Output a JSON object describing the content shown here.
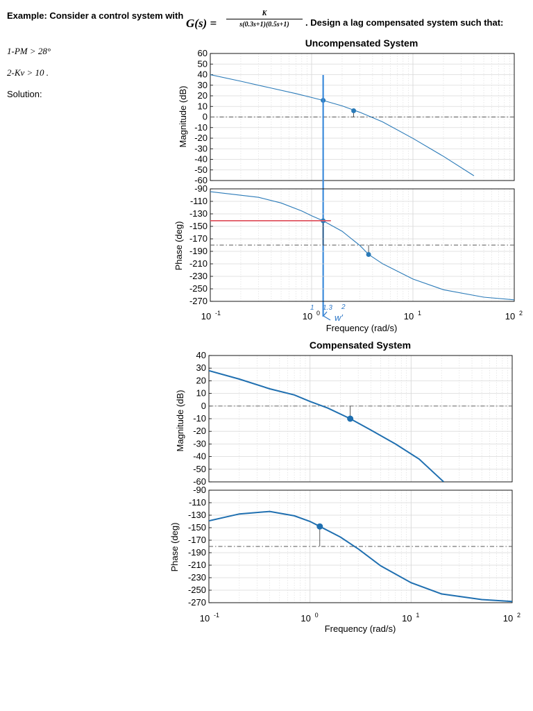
{
  "header": {
    "intro": "Example: Consider a control system with",
    "gs": "G(s) =",
    "numerator": "K",
    "denominator": "s(0.3s+1)(0.5s+1)",
    "tail": ". Design a lag compensated system such that:",
    "req1": "1-PM > 28°",
    "req2": "2-Kv > 10 .",
    "solution": "Solution:"
  },
  "annotations": {
    "hand_a": "1",
    "hand_b": "1.3",
    "hand_c": "2",
    "hand_w": "w'"
  },
  "colors": {
    "curve": "#2a7ab8",
    "curve_bold": "#1f6fb0",
    "marker_line": "#3d8bdc",
    "phase_line": "#e05560",
    "grid": "#d9d9d9",
    "refline": "#555555"
  },
  "chart_data": [
    {
      "type": "line",
      "title": "Uncompensated System",
      "subplot": "magnitude",
      "xscale": "log",
      "xlim": [
        0.1,
        100
      ],
      "ylim": [
        -60,
        60
      ],
      "yticks": [
        "60",
        "50",
        "40",
        "30",
        "20",
        "10",
        "0",
        "-10",
        "-20",
        "-30",
        "-40",
        "-50",
        "-60"
      ],
      "xlabel": "",
      "ylabel": "Magnitude (dB)",
      "series": [
        {
          "name": "G(jw) magnitude",
          "x": [
            0.1,
            0.2,
            0.4,
            0.7,
            1.0,
            1.3,
            2.0,
            3.0,
            5.0,
            10,
            20,
            40
          ],
          "values": [
            40,
            33.8,
            27.3,
            22.1,
            18.4,
            15.7,
            10.5,
            4.4,
            -4.5,
            -20.2,
            -37.2,
            -55.5
          ]
        }
      ],
      "markers": [
        {
          "x": 1.3,
          "y": 15.7
        },
        {
          "x": 2.6,
          "y": 5.9
        }
      ],
      "reference_y": 0,
      "vertical_line_x": 1.3
    },
    {
      "type": "line",
      "title": "",
      "subplot": "phase",
      "xscale": "log",
      "xlim": [
        0.1,
        100
      ],
      "ylim": [
        -270,
        -90
      ],
      "yticks": [
        "-90",
        "-110",
        "-130",
        "-150",
        "-170",
        "-190",
        "-210",
        "-230",
        "-250",
        "-270"
      ],
      "xticks": [
        "10-1",
        "100",
        "101",
        "102"
      ],
      "xlabel": "Frequency  (rad/s)",
      "ylabel": "Phase (deg)",
      "series": [
        {
          "name": "G(jw) phase",
          "x": [
            0.1,
            0.3,
            0.5,
            0.8,
            1.0,
            1.3,
            2.0,
            3.0,
            3.65,
            5.0,
            10,
            20,
            50,
            100
          ],
          "values": [
            -94.6,
            -103.6,
            -112.6,
            -125.4,
            -133.1,
            -141.1,
            -157.9,
            -180.8,
            -195,
            -209.7,
            -234.3,
            -251.4,
            -263.3,
            -267.5
          ]
        }
      ],
      "markers": [
        {
          "x": 1.3,
          "y": -141.1
        },
        {
          "x": 3.65,
          "y": -195
        }
      ],
      "reference_y": -180,
      "horizontal_line": {
        "y": -141,
        "x_from": 0.1,
        "x_to": 1.55
      }
    },
    {
      "type": "line",
      "title": "Compensated System",
      "subplot": "magnitude",
      "xscale": "log",
      "xlim": [
        0.1,
        100
      ],
      "ylim": [
        -60,
        40
      ],
      "yticks": [
        "40",
        "30",
        "20",
        "10",
        "0",
        "-10",
        "-20",
        "-30",
        "-40",
        "-50",
        "-60"
      ],
      "xlabel": "",
      "ylabel": "Magnitude (dB)",
      "series": [
        {
          "name": "Gc(jw)G(jw) magnitude",
          "x": [
            0.1,
            0.2,
            0.4,
            0.7,
            1.0,
            1.5,
            2.5,
            4.0,
            7.0,
            12,
            21
          ],
          "values": [
            28,
            21.3,
            13.6,
            8.8,
            3.6,
            -1.6,
            -10.0,
            -19.0,
            -30.0,
            -42.0,
            -60
          ]
        }
      ],
      "markers": [
        {
          "x": 2.5,
          "y": -10
        }
      ],
      "reference_y": 0
    },
    {
      "type": "line",
      "title": "",
      "subplot": "phase",
      "xscale": "log",
      "xlim": [
        0.1,
        100
      ],
      "ylim": [
        -270,
        -90
      ],
      "yticks": [
        "-90",
        "-110",
        "-130",
        "-150",
        "-170",
        "-190",
        "-210",
        "-230",
        "-250",
        "-270"
      ],
      "xticks": [
        "10-1",
        "100",
        "101",
        "102"
      ],
      "xlabel": "Frequency  (rad/s)",
      "ylabel": "Phase (deg)",
      "series": [
        {
          "name": "Gc(jw)G(jw) phase",
          "x": [
            0.1,
            0.2,
            0.4,
            0.7,
            1.0,
            1.25,
            2.0,
            3.0,
            5.0,
            10,
            20,
            50,
            100
          ],
          "values": [
            -139,
            -128,
            -124,
            -131,
            -140,
            -148,
            -165,
            -184,
            -211,
            -238,
            -256,
            -265,
            -268
          ]
        }
      ],
      "markers": [
        {
          "x": 1.25,
          "y": -148
        }
      ],
      "reference_y": -180
    }
  ]
}
